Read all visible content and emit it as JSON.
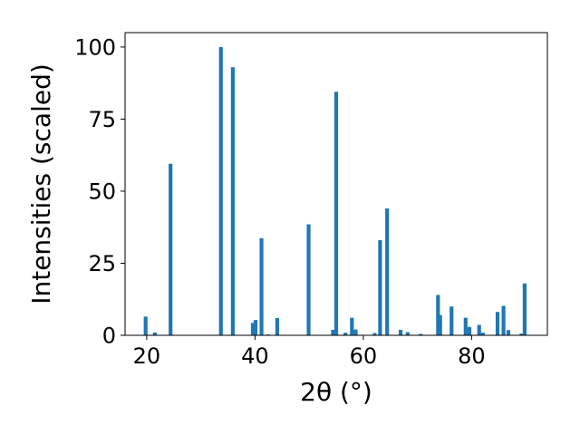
{
  "chart_data": {
    "type": "bar",
    "xlabel": "2θ (°)",
    "ylabel": "Intensities (scaled)",
    "xlim": [
      16,
      94
    ],
    "ylim": [
      0,
      105
    ],
    "xticks": [
      20,
      40,
      60,
      80
    ],
    "yticks": [
      0,
      25,
      50,
      75,
      100
    ],
    "xtick_labels": [
      "20",
      "40",
      "60",
      "80"
    ],
    "ytick_labels": [
      "0",
      "25",
      "50",
      "75",
      "100"
    ],
    "bar_width": 0.7,
    "grid": false,
    "bar_color": "#1f77b4",
    "x": [
      19.8,
      21.5,
      24.4,
      33.7,
      35.9,
      39.6,
      40.1,
      41.2,
      42.4,
      44.1,
      49.9,
      54.4,
      55.0,
      56.7,
      57.9,
      58.6,
      62.1,
      63.1,
      64.4,
      66.9,
      68.2,
      70.6,
      73.8,
      74.2,
      76.3,
      78.9,
      79.6,
      81.4,
      82.1,
      84.8,
      85.9,
      86.8,
      89.2,
      89.8
    ],
    "values": [
      6.5,
      1.0,
      59.5,
      100,
      93,
      4.3,
      5.3,
      33.7,
      0.3,
      6.0,
      38.5,
      1.9,
      84.5,
      0.9,
      6.1,
      2.0,
      0.8,
      33.0,
      44.0,
      1.9,
      1.1,
      0.5,
      14.0,
      7.0,
      10.0,
      6.1,
      2.9,
      3.6,
      0.9,
      8.1,
      10.2,
      1.8,
      0.6,
      18.0
    ]
  }
}
